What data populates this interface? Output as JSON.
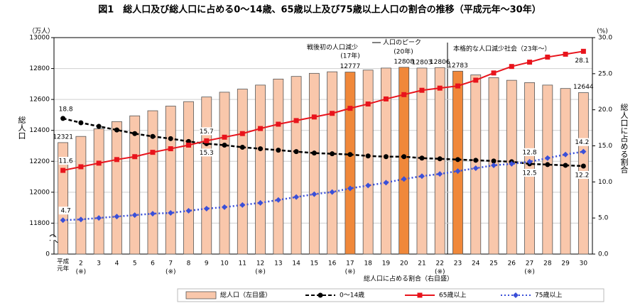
{
  "chart_data": {
    "type": "bar_line_combo",
    "title": "図1　総人口及び総人口に占める0～14歳、65歳以上及び75歳以上人口の割合の推移（平成元年～30年）",
    "y_unit": "（万人）",
    "y2_unit": "(%)",
    "ylabel": "総人口",
    "y2label": "総人口に占める割合",
    "x_note": "総人口に占める割合（右目盛）",
    "categories": [
      "平成元年",
      "2",
      "3",
      "4",
      "5",
      "6",
      "7",
      "8",
      "9",
      "10",
      "11",
      "12",
      "13",
      "14",
      "15",
      "16",
      "17",
      "18",
      "19",
      "20",
      "21",
      "22",
      "23",
      "24",
      "25",
      "26",
      "27",
      "28",
      "29",
      "30"
    ],
    "category_notes": [
      null,
      "(※)",
      null,
      null,
      null,
      null,
      "(※)",
      null,
      null,
      null,
      null,
      "(※)",
      null,
      null,
      null,
      null,
      "(※)",
      null,
      null,
      null,
      null,
      "(※)",
      null,
      null,
      null,
      null,
      "(※)",
      null,
      null,
      null
    ],
    "ylim": [
      0,
      13000
    ],
    "axis_break": [
      0,
      11600
    ],
    "yticks": [
      0,
      11800,
      12000,
      12200,
      12400,
      12600,
      12800,
      13000
    ],
    "y2lim": [
      0,
      30
    ],
    "y2ticks": [
      {
        "value": 0,
        "label": "0.0"
      },
      {
        "value": 5,
        "label": "5.0"
      },
      {
        "value": 10,
        "label": "10.0"
      },
      {
        "value": 15,
        "label": "15.0"
      },
      {
        "value": 20,
        "label": "20.0"
      },
      {
        "value": 25,
        "label": "25.0"
      },
      {
        "value": 30,
        "label": "30.0"
      }
    ],
    "grid": true,
    "series": [
      {
        "name": "総人口（左目盛）",
        "kind": "bar",
        "color": "#f9c7ab",
        "colors": [
          "#f9c7ab",
          "#f9c7ab",
          "#f9c7ab",
          "#f9c7ab",
          "#f9c7ab",
          "#f9c7ab",
          "#f9c7ab",
          "#f9c7ab",
          "#f9c7ab",
          "#f9c7ab",
          "#f9c7ab",
          "#f9c7ab",
          "#f9c7ab",
          "#f9c7ab",
          "#f9c7ab",
          "#f9c7ab",
          "#f0883a",
          "#f9c7ab",
          "#f9c7ab",
          "#f0883a",
          "#f9c7ab",
          "#f9c7ab",
          "#f0883a",
          "#f9c7ab",
          "#f9c7ab",
          "#f9c7ab",
          "#f9c7ab",
          "#f9c7ab",
          "#f9c7ab",
          "#f9c7ab"
        ],
        "values": [
          12321,
          12361,
          12410,
          12457,
          12494,
          12527,
          12557,
          12586,
          12616,
          12647,
          12667,
          12693,
          12732,
          12749,
          12769,
          12779,
          12777,
          12790,
          12803,
          12808,
          12803,
          12806,
          12783,
          12759,
          12741,
          12724,
          12709,
          12693,
          12671,
          12644
        ],
        "value_labels": [
          "12321",
          null,
          null,
          null,
          null,
          null,
          null,
          null,
          null,
          null,
          null,
          null,
          null,
          null,
          null,
          null,
          "12777",
          null,
          null,
          "12808",
          "12803",
          "12806",
          "12783",
          null,
          null,
          null,
          null,
          null,
          null,
          "12644"
        ]
      },
      {
        "name": "0～14歳",
        "kind": "line",
        "axis": "y2",
        "color": "#000000",
        "style": "dash",
        "marker": "circle",
        "values": [
          18.8,
          18.2,
          17.7,
          17.2,
          16.7,
          16.3,
          16.0,
          15.6,
          15.3,
          15.1,
          14.8,
          14.6,
          14.4,
          14.2,
          14.0,
          13.9,
          13.8,
          13.6,
          13.5,
          13.5,
          13.3,
          13.2,
          13.1,
          13.0,
          12.9,
          12.8,
          12.5,
          12.4,
          12.3,
          12.2
        ],
        "value_labels": [
          "18.8",
          null,
          null,
          null,
          null,
          null,
          null,
          null,
          "15.3",
          null,
          null,
          null,
          null,
          null,
          null,
          null,
          null,
          null,
          null,
          null,
          null,
          null,
          null,
          null,
          null,
          null,
          "12.5",
          null,
          null,
          "12.2"
        ]
      },
      {
        "name": "65歳以上",
        "kind": "line",
        "axis": "y2",
        "color": "#e8141c",
        "style": "solid",
        "marker": "square",
        "values": [
          11.6,
          12.1,
          12.6,
          13.1,
          13.5,
          14.1,
          14.6,
          15.1,
          15.7,
          16.2,
          16.7,
          17.4,
          18.0,
          18.5,
          19.0,
          19.5,
          20.2,
          20.8,
          21.5,
          22.1,
          22.7,
          23.0,
          23.3,
          24.1,
          25.1,
          26.0,
          26.6,
          27.3,
          27.7,
          28.1
        ],
        "value_labels": [
          "11.6",
          null,
          null,
          null,
          null,
          null,
          null,
          null,
          "15.7",
          null,
          null,
          null,
          null,
          null,
          null,
          null,
          null,
          null,
          null,
          null,
          null,
          null,
          null,
          null,
          null,
          null,
          null,
          null,
          null,
          "28.1"
        ]
      },
      {
        "name": "75歳以上",
        "kind": "line",
        "axis": "y2",
        "color": "#3a4fd8",
        "style": "dot",
        "marker": "diamond",
        "values": [
          4.7,
          4.8,
          5.0,
          5.2,
          5.4,
          5.6,
          5.7,
          6.0,
          6.3,
          6.5,
          6.8,
          7.1,
          7.5,
          7.9,
          8.3,
          8.6,
          9.1,
          9.5,
          9.9,
          10.4,
          10.8,
          11.1,
          11.5,
          11.9,
          12.3,
          12.5,
          12.8,
          13.3,
          13.8,
          14.2
        ],
        "value_labels": [
          "4.7",
          null,
          null,
          null,
          null,
          null,
          null,
          null,
          null,
          null,
          null,
          null,
          null,
          null,
          null,
          null,
          null,
          null,
          null,
          null,
          null,
          null,
          null,
          null,
          null,
          null,
          "12.8",
          null,
          null,
          "14.2"
        ]
      }
    ],
    "annotations": [
      "戦後初の人口減少",
      "(17年)",
      "人口のピーク",
      "(20年)",
      "本格的な人口減少社会（23年～）"
    ]
  }
}
